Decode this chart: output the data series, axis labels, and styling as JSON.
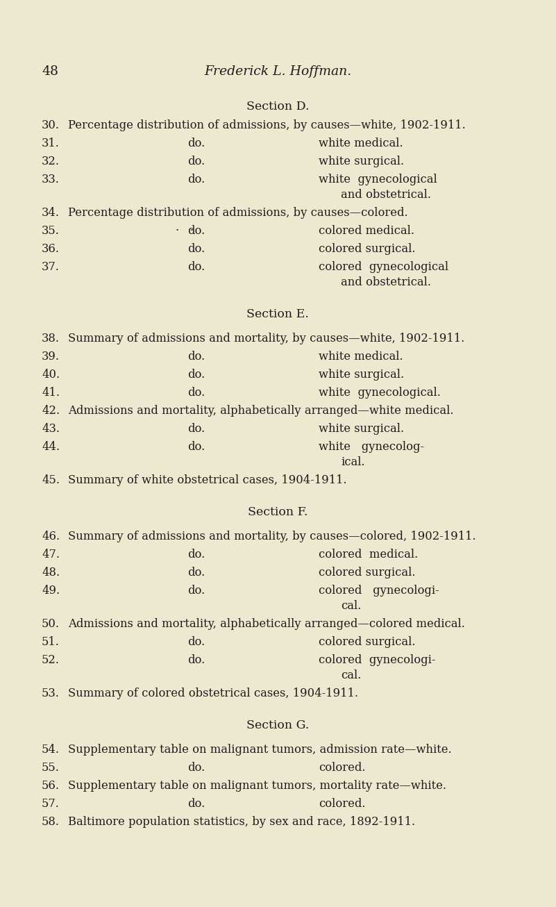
{
  "bg_color": "#ede8d0",
  "text_color": "#1c1c1c",
  "page_number": "48",
  "header_title": "Frederick L. Hoffman.",
  "section_d_label": "Section D.",
  "section_e_label": "Section E.",
  "section_f_label": "Section F.",
  "section_g_label": "Section G.",
  "entries_d": [
    {
      "num": "30.",
      "main": "Percentage distribution of admissions, by causes—white, 1902-1911.",
      "do": false,
      "right": null,
      "wrap2": null
    },
    {
      "num": "31.",
      "main": "do.",
      "do": true,
      "right": "white medical.",
      "wrap2": null
    },
    {
      "num": "32.",
      "main": "do.",
      "do": true,
      "right": "white surgical.",
      "wrap2": null
    },
    {
      "num": "33.",
      "main": "do.",
      "do": true,
      "right": "white  gynecological",
      "wrap2": "and obstetrical."
    },
    {
      "num": "34.",
      "main": "Percentage distribution of admissions, by causes—colored.",
      "do": false,
      "right": null,
      "wrap2": null
    },
    {
      "num": "35.",
      "main": "do.",
      "do": true,
      "right": "colored medical.",
      "wrap2": null,
      "dot_note": true
    },
    {
      "num": "36.",
      "main": "do.",
      "do": true,
      "right": "colored surgical.",
      "wrap2": null
    },
    {
      "num": "37.",
      "main": "do.",
      "do": true,
      "right": "colored  gynecological",
      "wrap2": "and obstetrical."
    }
  ],
  "entries_e": [
    {
      "num": "38.",
      "main": "Summary of admissions and mortality, by causes—white, 1902-1911.",
      "do": false,
      "right": null,
      "wrap2": null
    },
    {
      "num": "39.",
      "main": "do.",
      "do": true,
      "right": "white medical.",
      "wrap2": null
    },
    {
      "num": "40.",
      "main": "do.",
      "do": true,
      "right": "white surgical.",
      "wrap2": null
    },
    {
      "num": "41.",
      "main": "do.",
      "do": true,
      "right": "white  gynecological.",
      "wrap2": null
    },
    {
      "num": "42.",
      "main": "Admissions and mortality, alphabetically arranged—white medical.",
      "do": false,
      "right": null,
      "wrap2": null
    },
    {
      "num": "43.",
      "main": "do.",
      "do": true,
      "right": "white surgical.",
      "wrap2": null
    },
    {
      "num": "44.",
      "main": "do.",
      "do": true,
      "right": "white   gynecolog-",
      "wrap2": "ical."
    },
    {
      "num": "45.",
      "main": "Summary of white obstetrical cases, 1904-1911.",
      "do": false,
      "right": null,
      "wrap2": null
    }
  ],
  "entries_f": [
    {
      "num": "46.",
      "main": "Summary of admissions and mortality, by causes—colored, 1902-1911.",
      "do": false,
      "right": null,
      "wrap2": null
    },
    {
      "num": "47.",
      "main": "do.",
      "do": true,
      "right": "colored  medical.",
      "wrap2": null
    },
    {
      "num": "48.",
      "main": "do.",
      "do": true,
      "right": "colored surgical.",
      "wrap2": null
    },
    {
      "num": "49.",
      "main": "do.",
      "do": true,
      "right": "colored   gynecologi-",
      "wrap2": "cal."
    },
    {
      "num": "50.",
      "main": "Admissions and mortality, alphabetically arranged—colored medical.",
      "do": false,
      "right": null,
      "wrap2": null
    },
    {
      "num": "51.",
      "main": "do.",
      "do": true,
      "right": "colored surgical.",
      "wrap2": null
    },
    {
      "num": "52.",
      "main": "do.",
      "do": true,
      "right": "colored  gynecologi-",
      "wrap2": "cal."
    },
    {
      "num": "53.",
      "main": "Summary of colored obstetrical cases, 1904-1911.",
      "do": false,
      "right": null,
      "wrap2": null
    }
  ],
  "entries_g": [
    {
      "num": "54.",
      "main": "Supplementary table on malignant tumors, admission rate—white.",
      "do": false,
      "right": null,
      "wrap2": null
    },
    {
      "num": "55.",
      "main": "do.",
      "do": true,
      "right": "colored.",
      "wrap2": null
    },
    {
      "num": "56.",
      "main": "Supplementary table on malignant tumors, mortality rate—white.",
      "do": false,
      "right": null,
      "wrap2": null
    },
    {
      "num": "57.",
      "main": "do.",
      "do": true,
      "right": "colored.",
      "wrap2": null
    },
    {
      "num": "58.",
      "main": "Baltimore population statistics, by sex and race, 1892-1911.",
      "do": false,
      "right": null,
      "wrap2": null
    }
  ]
}
